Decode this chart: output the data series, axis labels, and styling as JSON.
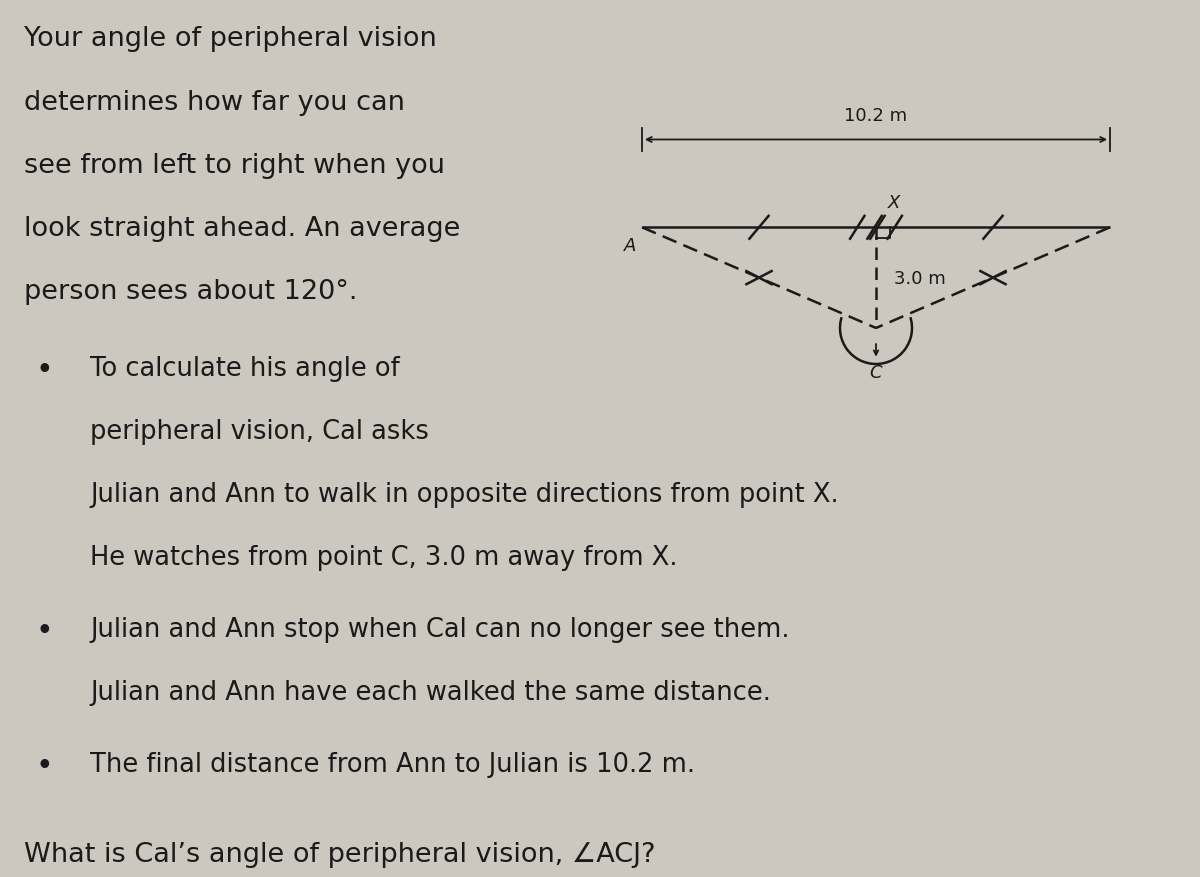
{
  "background_color": "#ccc8c0",
  "text_color": "#1a1a1a",
  "title_line1": "Your angle of peripheral vision",
  "title_line2": "determines how far you can",
  "title_line3": "see from left to right when you",
  "title_line4": "look straight ahead. An average",
  "title_line5": "person sees about 120°.",
  "bullet1_line1": "To calculate his angle of",
  "bullet1_line2": "peripheral vision, Cal asks",
  "bullet1_line3": "Julian and Ann to walk in opposite directions from point X.",
  "bullet1_line4": "He watches from point C, 3.0 m away from X.",
  "bullet2_line1": "Julian and Ann stop when Cal can no longer see them.",
  "bullet2_line2": "Julian and Ann have each walked the same distance.",
  "bullet3": "The final distance from Ann to Julian is 10.2 m.",
  "question": "What is Cal’s angle of peripheral vision, ∠ACJ?",
  "diagram_label_102": "10.2 m",
  "diagram_label_30": "3.0 m",
  "diagram_label_X": "X",
  "diagram_label_A": "A",
  "diagram_label_C": "C",
  "fig_width": 12.0,
  "fig_height": 8.78,
  "dpi": 100
}
